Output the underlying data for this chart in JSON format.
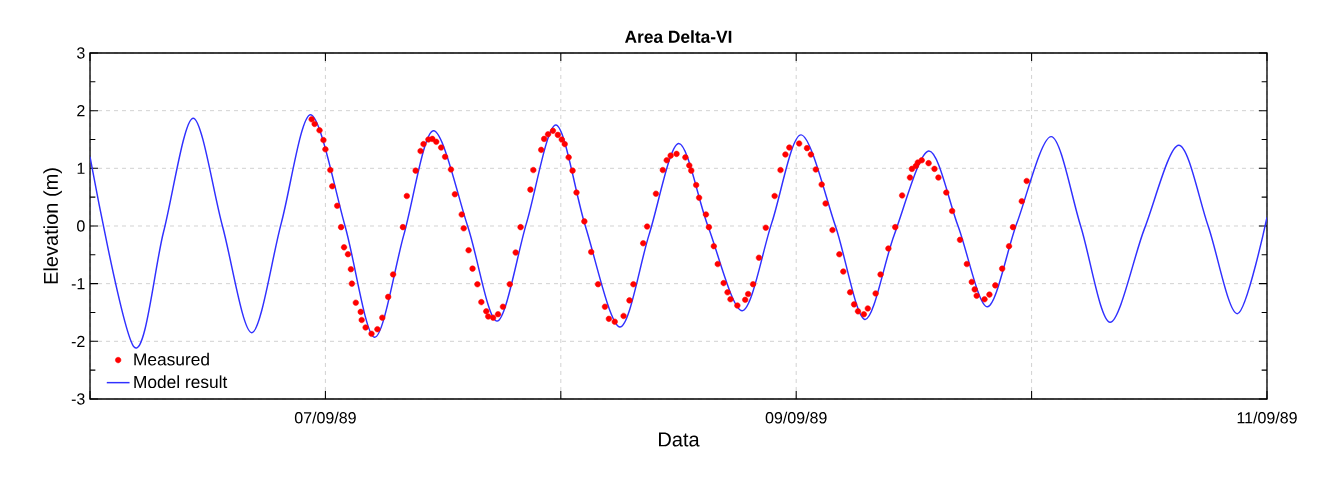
{
  "chart_data": {
    "type": "line",
    "title": "Area Delta-VI",
    "xlabel": "Data",
    "ylabel": "Elevation (m)",
    "xlim": [
      "1989-09-06T00:00",
      "1989-09-11T00:00"
    ],
    "xticks": [
      {
        "value": "1989-09-06T00:00",
        "label": null
      },
      {
        "value": "1989-09-07T00:00",
        "label": "07/09/89"
      },
      {
        "value": "1989-09-08T00:00",
        "label": null
      },
      {
        "value": "1989-09-09T00:00",
        "label": "09/09/89"
      },
      {
        "value": "1989-09-10T00:00",
        "label": null
      },
      {
        "value": "1989-09-11T00:00",
        "label": "11/09/89"
      }
    ],
    "ylim": [
      -3,
      3
    ],
    "yticks": [
      -3,
      -2,
      -1,
      0,
      1,
      2,
      3
    ],
    "grid": true,
    "legend": "bottom left",
    "series": [
      {
        "name": "Measured",
        "type": "scatter",
        "marker": "circle",
        "color": "#ff0000",
        "x": [
          "1989-09-06T22:36",
          "1989-09-06T22:54",
          "1989-09-06T23:24",
          "1989-09-06T23:48",
          "1989-09-07T00:00",
          "1989-09-07T00:30",
          "1989-09-07T00:42",
          "1989-09-07T01:12",
          "1989-09-07T01:36",
          "1989-09-07T01:54",
          "1989-09-07T02:18",
          "1989-09-07T02:36",
          "1989-09-07T02:42",
          "1989-09-07T03:06",
          "1989-09-07T03:36",
          "1989-09-07T03:42",
          "1989-09-07T04:06",
          "1989-09-07T04:42",
          "1989-09-07T05:18",
          "1989-09-07T05:48",
          "1989-09-07T06:24",
          "1989-09-07T06:54",
          "1989-09-07T07:54",
          "1989-09-07T08:18",
          "1989-09-07T09:12",
          "1989-09-07T09:42",
          "1989-09-07T10:00",
          "1989-09-07T10:30",
          "1989-09-07T10:54",
          "1989-09-07T11:18",
          "1989-09-07T11:48",
          "1989-09-07T12:12",
          "1989-09-07T12:48",
          "1989-09-07T13:12",
          "1989-09-07T13:54",
          "1989-09-07T14:06",
          "1989-09-07T14:36",
          "1989-09-07T15:00",
          "1989-09-07T15:30",
          "1989-09-07T15:54",
          "1989-09-07T16:24",
          "1989-09-07T16:36",
          "1989-09-07T17:06",
          "1989-09-07T17:36",
          "1989-09-07T18:06",
          "1989-09-07T18:48",
          "1989-09-07T19:24",
          "1989-09-07T19:54",
          "1989-09-07T20:54",
          "1989-09-07T21:12",
          "1989-09-07T22:00",
          "1989-09-07T22:18",
          "1989-09-07T22:42",
          "1989-09-07T23:12",
          "1989-09-07T23:42",
          "1989-09-08T00:06",
          "1989-09-08T00:24",
          "1989-09-08T00:48",
          "1989-09-08T01:12",
          "1989-09-08T01:36",
          "1989-09-08T02:24",
          "1989-09-08T03:06",
          "1989-09-08T03:48",
          "1989-09-08T04:30",
          "1989-09-08T04:54",
          "1989-09-08T05:30",
          "1989-09-08T06:24",
          "1989-09-08T07:00",
          "1989-09-08T07:24",
          "1989-09-08T08:24",
          "1989-09-08T08:48",
          "1989-09-08T09:42",
          "1989-09-08T10:24",
          "1989-09-08T10:48",
          "1989-09-08T11:12",
          "1989-09-08T11:48",
          "1989-09-08T12:42",
          "1989-09-08T13:06",
          "1989-09-08T13:18",
          "1989-09-08T13:48",
          "1989-09-08T14:06",
          "1989-09-08T14:48",
          "1989-09-08T15:06",
          "1989-09-08T15:36",
          "1989-09-08T16:00",
          "1989-09-08T16:36",
          "1989-09-08T17:00",
          "1989-09-08T17:18",
          "1989-09-08T18:00",
          "1989-09-08T18:48",
          "1989-09-08T19:06",
          "1989-09-08T19:36",
          "1989-09-08T20:12",
          "1989-09-08T20:54",
          "1989-09-08T21:48",
          "1989-09-08T22:24",
          "1989-09-08T22:54",
          "1989-09-08T23:18",
          "1989-09-09T00:18",
          "1989-09-09T01:06",
          "1989-09-09T01:30",
          "1989-09-09T02:00",
          "1989-09-09T02:36",
          "1989-09-09T03:00",
          "1989-09-09T03:42",
          "1989-09-09T04:24",
          "1989-09-09T04:48",
          "1989-09-09T05:30",
          "1989-09-09T05:54",
          "1989-09-09T06:18",
          "1989-09-09T06:54",
          "1989-09-09T07:18",
          "1989-09-09T08:06",
          "1989-09-09T08:36",
          "1989-09-09T09:24",
          "1989-09-09T10:06",
          "1989-09-09T10:48",
          "1989-09-09T11:36",
          "1989-09-09T11:48",
          "1989-09-09T12:12",
          "1989-09-09T12:24",
          "1989-09-09T12:48",
          "1989-09-09T13:30",
          "1989-09-09T14:06",
          "1989-09-09T14:30",
          "1989-09-09T15:18",
          "1989-09-09T15:54",
          "1989-09-09T16:42",
          "1989-09-09T17:24",
          "1989-09-09T17:54",
          "1989-09-09T18:12",
          "1989-09-09T18:24",
          "1989-09-09T19:12",
          "1989-09-09T19:42",
          "1989-09-09T20:18",
          "1989-09-09T21:00",
          "1989-09-09T21:42",
          "1989-09-09T22:06",
          "1989-09-09T23:00",
          "1989-09-09T23:30"
        ],
        "values": [
          1.85,
          1.77,
          1.66,
          1.49,
          1.33,
          0.97,
          0.69,
          0.35,
          -0.02,
          -0.37,
          -0.49,
          -0.75,
          -1.0,
          -1.33,
          -1.49,
          -1.63,
          -1.76,
          -1.87,
          -1.79,
          -1.59,
          -1.23,
          -0.84,
          -0.02,
          0.52,
          0.96,
          1.3,
          1.42,
          1.5,
          1.51,
          1.46,
          1.36,
          1.2,
          0.98,
          0.55,
          0.2,
          -0.04,
          -0.42,
          -0.74,
          -1.01,
          -1.32,
          -1.48,
          -1.57,
          -1.59,
          -1.53,
          -1.4,
          -1.01,
          -0.46,
          -0.02,
          0.63,
          0.97,
          1.32,
          1.51,
          1.59,
          1.65,
          1.58,
          1.5,
          1.42,
          1.19,
          0.96,
          0.58,
          0.08,
          -0.45,
          -1.01,
          -1.4,
          -1.61,
          -1.66,
          -1.56,
          -1.29,
          -1.01,
          -0.3,
          -0.01,
          0.56,
          0.97,
          1.14,
          1.22,
          1.25,
          1.19,
          1.05,
          0.96,
          0.71,
          0.49,
          0.2,
          -0.02,
          -0.35,
          -0.66,
          -0.99,
          -1.15,
          -1.27,
          -1.38,
          -1.28,
          -1.18,
          -1.01,
          -0.55,
          -0.03,
          0.52,
          0.97,
          1.24,
          1.36,
          1.43,
          1.35,
          1.24,
          0.98,
          0.72,
          0.39,
          -0.07,
          -0.49,
          -0.79,
          -1.15,
          -1.36,
          -1.48,
          -1.53,
          -1.43,
          -1.17,
          -0.84,
          -0.39,
          -0.02,
          0.53,
          0.84,
          0.99,
          1.04,
          1.1,
          1.14,
          1.09,
          0.99,
          0.84,
          0.58,
          0.26,
          -0.24,
          -0.66,
          -0.97,
          -1.1,
          -1.21,
          -1.27,
          -1.19,
          -1.03,
          -0.74,
          -0.35,
          -0.02,
          0.43,
          0.78
        ]
      },
      {
        "name": "Model result",
        "marker": "none",
        "line_style": "solid",
        "color": "#3030ff",
        "x": [
          "1989-09-06T00:00",
          "1989-09-06T04:30",
          "1989-09-06T07:30",
          "1989-09-06T10:30",
          "1989-09-06T13:30",
          "1989-09-06T16:30",
          "1989-09-06T19:30",
          "1989-09-06T22:30",
          "1989-09-07T02:00",
          "1989-09-07T05:00",
          "1989-09-07T08:00",
          "1989-09-07T11:00",
          "1989-09-07T14:30",
          "1989-09-07T17:30",
          "1989-09-07T20:30",
          "1989-09-07T23:30",
          "1989-09-08T02:30",
          "1989-09-08T06:00",
          "1989-09-08T09:00",
          "1989-09-08T12:00",
          "1989-09-08T15:00",
          "1989-09-08T18:30",
          "1989-09-08T21:30",
          "1989-09-09T00:30",
          "1989-09-09T04:00",
          "1989-09-09T07:00",
          "1989-09-09T10:00",
          "1989-09-09T13:30",
          "1989-09-09T16:30",
          "1989-09-09T19:30",
          "1989-09-09T22:30",
          "1989-09-10T02:00",
          "1989-09-10T05:00",
          "1989-09-10T08:00",
          "1989-09-10T11:30",
          "1989-09-10T15:00",
          "1989-09-10T18:00",
          "1989-09-10T21:00",
          "1989-09-11T00:00"
        ],
        "values": [
          1.2,
          -2.1,
          -0.1,
          1.87,
          0.0,
          -1.85,
          0.05,
          1.93,
          0.0,
          -1.93,
          -0.15,
          1.65,
          0.0,
          -1.65,
          0.05,
          1.75,
          0.0,
          -1.75,
          -0.15,
          1.43,
          0.0,
          -1.47,
          0.05,
          1.58,
          0.0,
          -1.62,
          -0.15,
          1.3,
          0.0,
          -1.4,
          0.05,
          1.55,
          0.0,
          -1.67,
          -0.05,
          1.4,
          0.0,
          -1.52,
          0.15
        ]
      }
    ]
  }
}
